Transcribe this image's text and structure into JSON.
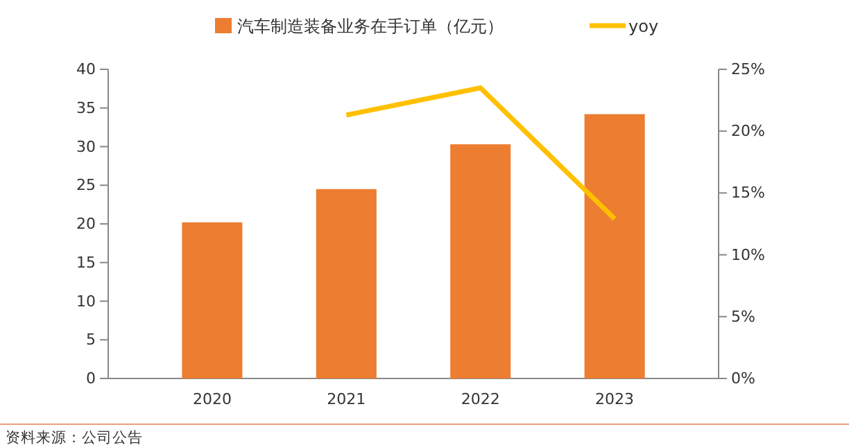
{
  "chart_data": {
    "type": "bar",
    "categories": [
      "2020",
      "2021",
      "2022",
      "2023"
    ],
    "series": [
      {
        "name": "汽车制造装备业务在手订单（亿元）",
        "color": "#ed7d31",
        "values": [
          20.2,
          24.5,
          30.3,
          34.2
        ]
      },
      {
        "name": "yoy",
        "type": "line",
        "axis": "y2",
        "color": "#ffc000",
        "values": [
          null,
          21.3,
          23.5,
          12.9
        ]
      }
    ],
    "ylim": [
      0,
      40
    ],
    "yticks": [
      0,
      5,
      10,
      15,
      20,
      25,
      30,
      35,
      40
    ],
    "y2lim": [
      0,
      25
    ],
    "y2ticks": [
      {
        "value": 0,
        "label": "0%"
      },
      {
        "value": 5,
        "label": "5%"
      },
      {
        "value": 10,
        "label": "10%"
      },
      {
        "value": 15,
        "label": "15%"
      },
      {
        "value": 20,
        "label": "20%"
      },
      {
        "value": 25,
        "label": "25%"
      }
    ],
    "legend": "top",
    "grid": false,
    "marker": "none",
    "annotations": [
      "资料来源：公司公告"
    ]
  }
}
